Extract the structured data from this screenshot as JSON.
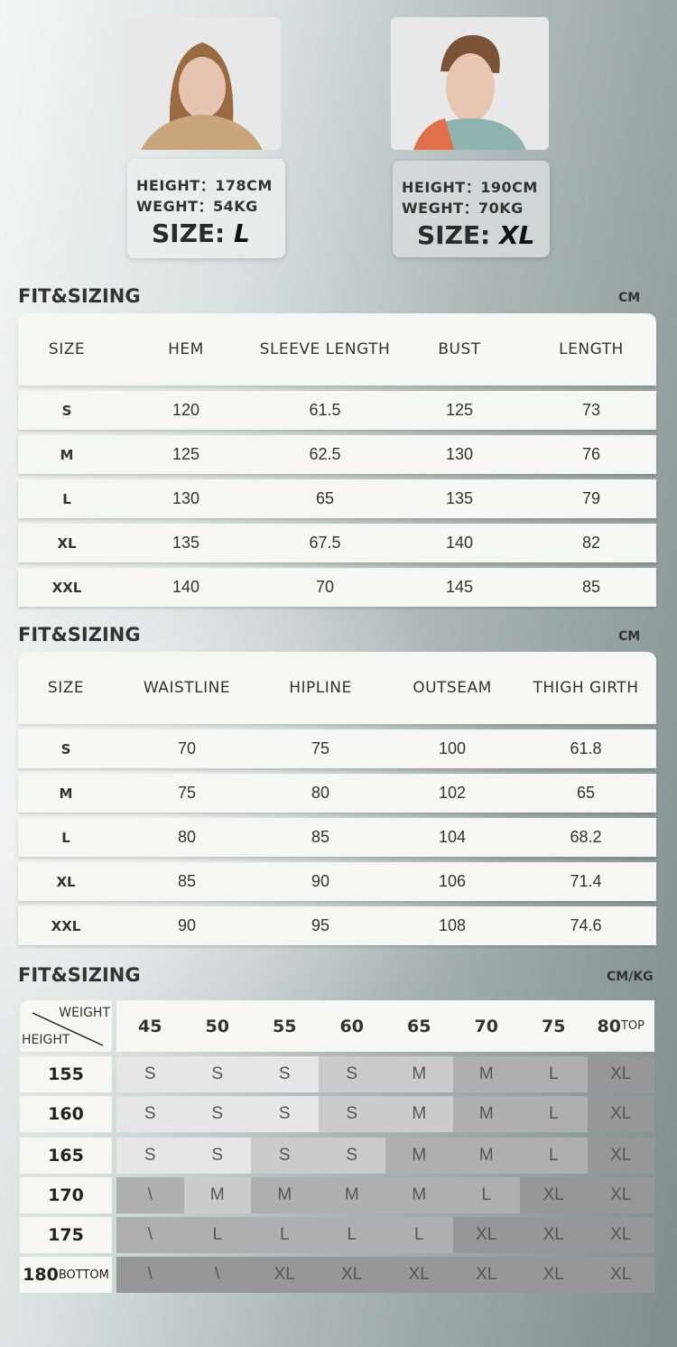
{
  "models": [
    {
      "height": "HEIGHT：178CM",
      "weight": "WEGHT：54KG",
      "size_label": "SIZE:",
      "size": "L"
    },
    {
      "height": "HEIGHT：190CM",
      "weight": "WEGHT：70KG",
      "size_label": "SIZE:",
      "size": "XL"
    }
  ],
  "top_table": {
    "title": "FIT&SIZING",
    "unit": "CM",
    "headers": [
      "SIZE",
      "HEM",
      "SLEEVE LENGTH",
      "BUST",
      "LENGTH"
    ],
    "rows": [
      [
        "S",
        "120",
        "61.5",
        "125",
        "73"
      ],
      [
        "M",
        "125",
        "62.5",
        "130",
        "76"
      ],
      [
        "L",
        "130",
        "65",
        "135",
        "79"
      ],
      [
        "XL",
        "135",
        "67.5",
        "140",
        "82"
      ],
      [
        "XXL",
        "140",
        "70",
        "145",
        "85"
      ]
    ]
  },
  "bottom_table": {
    "title": "FIT&SIZING",
    "unit": "CM",
    "headers": [
      "SIZE",
      "WAISTLINE",
      "HIPLINE",
      "OUTSEAM",
      "THIGH GIRTH"
    ],
    "rows": [
      [
        "S",
        "70",
        "75",
        "100",
        "61.8"
      ],
      [
        "M",
        "75",
        "80",
        "102",
        "65"
      ],
      [
        "L",
        "80",
        "85",
        "104",
        "68.2"
      ],
      [
        "XL",
        "85",
        "90",
        "106",
        "71.4"
      ],
      [
        "XXL",
        "90",
        "95",
        "108",
        "74.6"
      ]
    ]
  },
  "weight_height": {
    "title": "FIT&SIZING",
    "unit": "CM/KG",
    "corner_weight": "WEIGHT",
    "corner_height": "HEIGHT",
    "weights": [
      "45",
      "50",
      "55",
      "60",
      "65",
      "70",
      "75",
      "80"
    ],
    "weight_suffix_last": "TOP",
    "heights": [
      "155",
      "160",
      "165",
      "170",
      "175",
      "180"
    ],
    "height_suffix_last": "BOTTOM",
    "shade_colors": [
      "#e6e6e6",
      "#cbcbcb",
      "#afafaf",
      "#979797"
    ],
    "rows": [
      {
        "sizes": [
          "S",
          "S",
          "S",
          "S",
          "M",
          "M",
          "L",
          "XL"
        ],
        "shades": [
          0,
          0,
          0,
          1,
          1,
          2,
          2,
          3
        ]
      },
      {
        "sizes": [
          "S",
          "S",
          "S",
          "S",
          "M",
          "M",
          "L",
          "XL"
        ],
        "shades": [
          0,
          0,
          0,
          1,
          1,
          2,
          2,
          3
        ]
      },
      {
        "sizes": [
          "S",
          "S",
          "S",
          "S",
          "M",
          "M",
          "L",
          "XL"
        ],
        "shades": [
          0,
          0,
          1,
          1,
          2,
          2,
          2,
          3
        ]
      },
      {
        "sizes": [
          "\\",
          "M",
          "M",
          "M",
          "M",
          "L",
          "XL",
          "XL"
        ],
        "shades": [
          2,
          1,
          2,
          2,
          2,
          2,
          3,
          3
        ]
      },
      {
        "sizes": [
          "\\",
          "L",
          "L",
          "L",
          "L",
          "XL",
          "XL",
          "XL"
        ],
        "shades": [
          2,
          2,
          2,
          2,
          2,
          3,
          3,
          3
        ]
      },
      {
        "sizes": [
          "\\",
          "\\",
          "XL",
          "XL",
          "XL",
          "XL",
          "XL",
          "XL"
        ],
        "shades": [
          3,
          3,
          3,
          3,
          3,
          3,
          3,
          3
        ]
      }
    ]
  }
}
